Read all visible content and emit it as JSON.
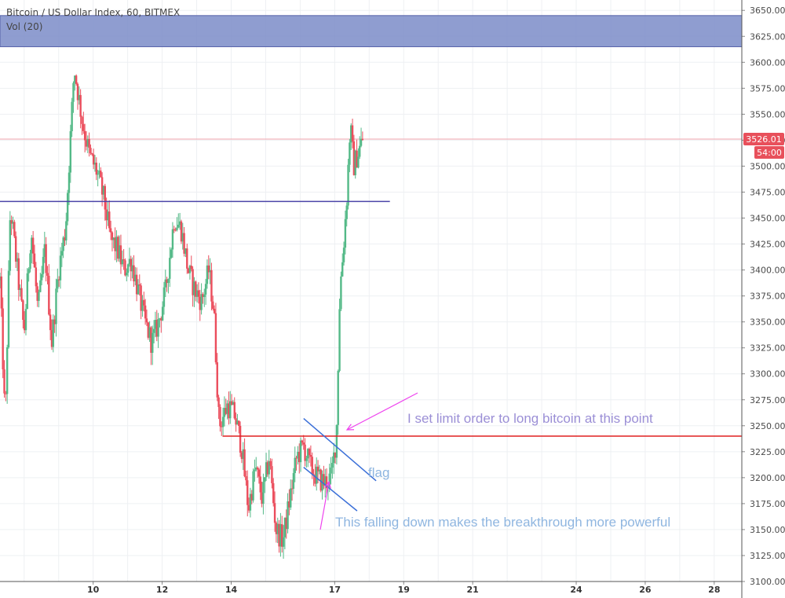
{
  "header": {
    "symbol_line": "Bitcoin / US Dollar Index, 60, BITMEX",
    "indicator_line": "Vol (20)"
  },
  "colors": {
    "up": "#53b987",
    "down": "#eb4d5c",
    "resistance_zone": "#7b8cc8",
    "trendline": "#4b44a8",
    "support_line": "#e02020",
    "flag_lines": "#3a6fd8",
    "arrows": "#ee44ee",
    "annotation_text": "#9b8fd6",
    "annotation_text_light": "#8fb6e0",
    "last_price_bg": "#e8505b",
    "current_price_line": "#f2a6ae"
  },
  "chart_data": {
    "type": "candlestick",
    "title": "Bitcoin / US Dollar Index, 60, BITMEX",
    "ylim": [
      3100,
      3660
    ],
    "y_ticks": [
      3100,
      3125,
      3150,
      3175,
      3200,
      3225,
      3250,
      3275,
      3300,
      3325,
      3350,
      3375,
      3400,
      3425,
      3450,
      3475,
      3500,
      3525,
      3550,
      3575,
      3600,
      3625,
      3650
    ],
    "y_tick_labels": [
      "3100.00",
      "3125.00",
      "3150.00",
      "3175.00",
      "3200.00",
      "3225.00",
      "3250.00",
      "3275.00",
      "3300.00",
      "3325.00",
      "3350.00",
      "3375.00",
      "3400.00",
      "3425.00",
      "3450.00",
      "3475.00",
      "3500.00",
      "3525.00",
      "3550.00",
      "3575.00",
      "3600.00",
      "3625.00",
      "3650.00"
    ],
    "x_days_range": [
      7.3,
      28.8
    ],
    "x_ticks": [
      {
        "day": 10,
        "label": "10"
      },
      {
        "day": 12,
        "label": "12"
      },
      {
        "day": 14,
        "label": "14"
      },
      {
        "day": 17,
        "label": "17"
      },
      {
        "day": 19,
        "label": "19"
      },
      {
        "day": 21,
        "label": "21"
      },
      {
        "day": 24,
        "label": "24"
      },
      {
        "day": 26,
        "label": "26"
      },
      {
        "day": 28,
        "label": "28"
      }
    ],
    "last_price": 3526.01,
    "last_price_label": "3526.01",
    "countdown_label": "54:00",
    "candle_path": [
      [
        7.3,
        3390
      ],
      [
        7.45,
        3250
      ],
      [
        7.6,
        3460
      ],
      [
        7.8,
        3400
      ],
      [
        8.0,
        3340
      ],
      [
        8.2,
        3440
      ],
      [
        8.4,
        3360
      ],
      [
        8.6,
        3420
      ],
      [
        8.8,
        3330
      ],
      [
        9.0,
        3400
      ],
      [
        9.2,
        3440
      ],
      [
        9.45,
        3595
      ],
      [
        9.7,
        3540
      ],
      [
        9.9,
        3510
      ],
      [
        10.1,
        3495
      ],
      [
        10.3,
        3470
      ],
      [
        10.5,
        3430
      ],
      [
        10.7,
        3420
      ],
      [
        10.9,
        3400
      ],
      [
        11.1,
        3410
      ],
      [
        11.3,
        3380
      ],
      [
        11.5,
        3350
      ],
      [
        11.7,
        3330
      ],
      [
        11.9,
        3350
      ],
      [
        12.1,
        3380
      ],
      [
        12.35,
        3450
      ],
      [
        12.55,
        3440
      ],
      [
        12.75,
        3400
      ],
      [
        12.95,
        3380
      ],
      [
        13.15,
        3370
      ],
      [
        13.35,
        3400
      ],
      [
        13.5,
        3360
      ],
      [
        13.65,
        3250
      ],
      [
        13.9,
        3270
      ],
      [
        14.1,
        3260
      ],
      [
        14.3,
        3230
      ],
      [
        14.5,
        3170
      ],
      [
        14.7,
        3210
      ],
      [
        14.9,
        3180
      ],
      [
        15.1,
        3220
      ],
      [
        15.3,
        3150
      ],
      [
        15.5,
        3140
      ],
      [
        15.7,
        3180
      ],
      [
        15.9,
        3220
      ],
      [
        16.1,
        3230
      ],
      [
        16.3,
        3210
      ],
      [
        16.5,
        3200
      ],
      [
        16.7,
        3195
      ],
      [
        16.9,
        3200
      ],
      [
        17.05,
        3240
      ],
      [
        17.15,
        3380
      ],
      [
        17.25,
        3420
      ],
      [
        17.35,
        3470
      ],
      [
        17.45,
        3540
      ],
      [
        17.55,
        3500
      ],
      [
        17.65,
        3510
      ],
      [
        17.85,
        3530
      ]
    ],
    "resistance_zone": {
      "from": 3615,
      "to": 3645
    },
    "trend_line": {
      "x1": 7.3,
      "y1": 3466,
      "x2": 18.6,
      "y2": 3466
    },
    "support_line": {
      "x1": 13.75,
      "y1": 3240,
      "x2": 28.8,
      "y2": 3240
    },
    "flag_upper": {
      "x1": 16.1,
      "y1": 3257,
      "x2": 18.2,
      "y2": 3197
    },
    "flag_lower": {
      "x1": 16.1,
      "y1": 3210,
      "x2": 17.65,
      "y2": 3168
    },
    "annotations": {
      "long_note": "I set limit order to long bitcoin at this point",
      "flag_note": "flag",
      "fall_note": "This falling down makes the breakthrough more powerful"
    }
  }
}
